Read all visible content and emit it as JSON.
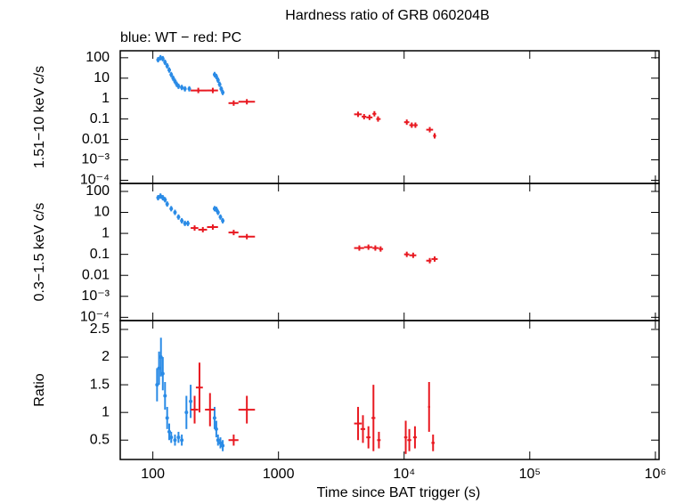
{
  "chart_data": [
    {
      "type": "scatter",
      "title": "Hardness ratio of GRB 060204B",
      "subtitle": "blue: WT − red: PC",
      "ylabel": "1.51−10 keV c/s",
      "log_x": true,
      "log_y": true,
      "xlim": [
        55,
        1070000
      ],
      "ylim": [
        7e-05,
        220
      ],
      "yticks": [
        100,
        10,
        1,
        0.1,
        0.01,
        {
          "value": 0.001,
          "label": "10⁻³"
        },
        {
          "value": 0.0001,
          "label": "10⁻⁴"
        }
      ],
      "series": [
        {
          "name": "WT",
          "color": "#2a8be6",
          "x": [
            110,
            115,
            120,
            125,
            130,
            135,
            140,
            145,
            150,
            155,
            160,
            170,
            180,
            195,
            310,
            320,
            330,
            340,
            350,
            360
          ],
          "values": [
            80,
            100,
            90,
            60,
            40,
            25,
            15,
            10,
            7,
            5,
            4,
            3.5,
            3,
            3,
            15,
            12,
            8,
            5,
            3,
            2
          ]
        },
        {
          "name": "PC",
          "color": "#e81820",
          "x": [
            230,
            300,
            440,
            560,
            4300,
            4800,
            5300,
            5800,
            6200,
            10500,
            11500,
            12300,
            16000,
            17500
          ],
          "x_low": [
            200,
            270,
            400,
            480,
            4000,
            4600,
            5000,
            5600,
            6000,
            10000,
            11000,
            12000,
            15000,
            17000
          ],
          "x_high": [
            270,
            330,
            480,
            650,
            4600,
            5000,
            5600,
            6000,
            6500,
            11000,
            12000,
            12800,
            17000,
            18000
          ],
          "values": [
            2.5,
            2.5,
            0.6,
            0.7,
            0.17,
            0.13,
            0.12,
            0.18,
            0.1,
            0.07,
            0.05,
            0.05,
            0.03,
            0.015
          ]
        }
      ]
    },
    {
      "type": "scatter",
      "ylabel": "0.3−1.5 keV c/s",
      "log_x": true,
      "log_y": true,
      "xlim": [
        55,
        1070000
      ],
      "ylim": [
        7e-05,
        240
      ],
      "yticks": [
        100,
        10,
        1,
        0.1,
        0.01,
        {
          "value": 0.001,
          "label": "10⁻³"
        },
        {
          "value": 0.0001,
          "label": "10⁻⁴"
        }
      ],
      "series": [
        {
          "name": "WT",
          "color": "#2a8be6",
          "x": [
            110,
            115,
            120,
            125,
            130,
            140,
            150,
            160,
            170,
            180,
            190,
            310,
            320,
            330,
            345,
            360
          ],
          "values": [
            50,
            60,
            50,
            40,
            25,
            15,
            10,
            6,
            4,
            3,
            3,
            15,
            14,
            10,
            6,
            4
          ]
        },
        {
          "name": "PC",
          "color": "#e81820",
          "x": [
            215,
            250,
            300,
            440,
            560,
            4400,
            5200,
            5900,
            6500,
            10500,
            11800,
            16000,
            17500
          ],
          "x_low": [
            200,
            230,
            270,
            400,
            480,
            4000,
            4800,
            5600,
            6300,
            10000,
            11000,
            15000,
            16500
          ],
          "x_high": [
            230,
            270,
            330,
            480,
            650,
            4800,
            5600,
            6300,
            6800,
            11000,
            12500,
            16500,
            18500
          ],
          "values": [
            1.8,
            1.5,
            2,
            1.1,
            0.7,
            0.2,
            0.22,
            0.2,
            0.18,
            0.1,
            0.09,
            0.05,
            0.06
          ]
        }
      ]
    },
    {
      "type": "scatter",
      "ylabel": "Ratio",
      "xlabel": "Time since BAT trigger (s)",
      "log_x": true,
      "log_y": false,
      "xlim": [
        55,
        1070000
      ],
      "ylim": [
        0.15,
        2.66
      ],
      "xticks": [
        100,
        1000,
        {
          "value": 10000,
          "label": "10⁴"
        },
        {
          "value": 100000,
          "label": "10⁵"
        },
        {
          "value": 1000000,
          "label": "10⁶"
        }
      ],
      "yticks": [
        0.5,
        1,
        1.5,
        2,
        2.5
      ],
      "series": [
        {
          "name": "WT",
          "color": "#2a8be6",
          "x": [
            108,
            112,
            116,
            120,
            125,
            130,
            135,
            140,
            150,
            160,
            170,
            185,
            200,
            310,
            320,
            330,
            345,
            360
          ],
          "values": [
            1.5,
            1.8,
            2.0,
            1.7,
            1.3,
            0.9,
            0.65,
            0.55,
            0.5,
            0.55,
            0.5,
            1.0,
            1.2,
            0.9,
            0.7,
            0.5,
            0.45,
            0.4
          ],
          "yerr": [
            0.3,
            0.3,
            0.35,
            0.3,
            0.25,
            0.2,
            0.15,
            0.1,
            0.1,
            0.1,
            0.1,
            0.3,
            0.3,
            0.2,
            0.15,
            0.1,
            0.1,
            0.1
          ]
        },
        {
          "name": "PC",
          "color": "#e81820",
          "x": [
            215,
            235,
            285,
            440,
            560,
            4300,
            4700,
            5200,
            5700,
            6300,
            10300,
            11000,
            12200,
            15800,
            17000
          ],
          "x_low": [
            200,
            220,
            260,
            400,
            480,
            4000,
            4500,
            5000,
            5500,
            6100,
            10000,
            10600,
            11800,
            15500,
            16500
          ],
          "x_high": [
            230,
            250,
            310,
            480,
            650,
            4600,
            4900,
            5400,
            5900,
            6500,
            10600,
            11400,
            12600,
            16100,
            17500
          ],
          "values": [
            1.05,
            1.45,
            1.05,
            0.5,
            1.05,
            0.8,
            0.7,
            0.55,
            0.9,
            0.5,
            0.55,
            0.5,
            0.55,
            1.1,
            0.45
          ],
          "yerr": [
            0.25,
            0.45,
            0.3,
            0.1,
            0.25,
            0.3,
            0.25,
            0.2,
            0.6,
            0.15,
            0.3,
            0.2,
            0.2,
            0.45,
            0.15
          ]
        }
      ]
    }
  ]
}
